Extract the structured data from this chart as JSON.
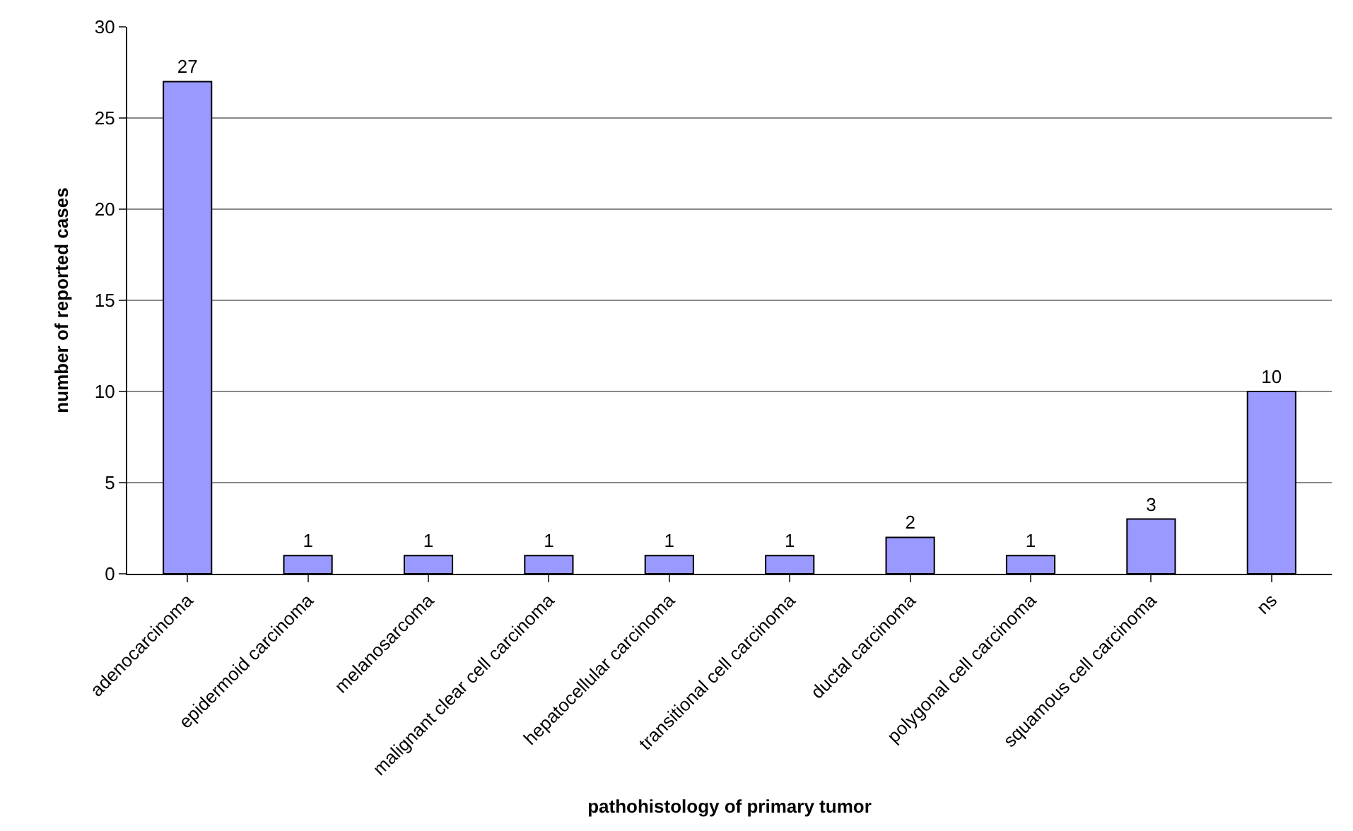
{
  "chart_data": {
    "type": "bar",
    "xlabel": "pathohistology of primary tumor",
    "ylabel": "number of reported cases",
    "categories": [
      "adenocarcinoma",
      "epidermoid carcinoma",
      "melanosarcoma",
      "malignant clear cell carcinoma",
      "hepatocellular carcinoma",
      "transitional cell carcinoma",
      "ductal carcinoma",
      "polygonal cell carcinoma",
      "squamous cell carcinoma",
      "ns"
    ],
    "values": [
      27,
      1,
      1,
      1,
      1,
      1,
      2,
      1,
      3,
      10
    ],
    "color": "#9999ff",
    "ylim": [
      0,
      30
    ],
    "yticks": [
      0,
      5,
      10,
      15,
      20,
      25,
      30
    ],
    "grid": "y",
    "data_labels": true
  }
}
